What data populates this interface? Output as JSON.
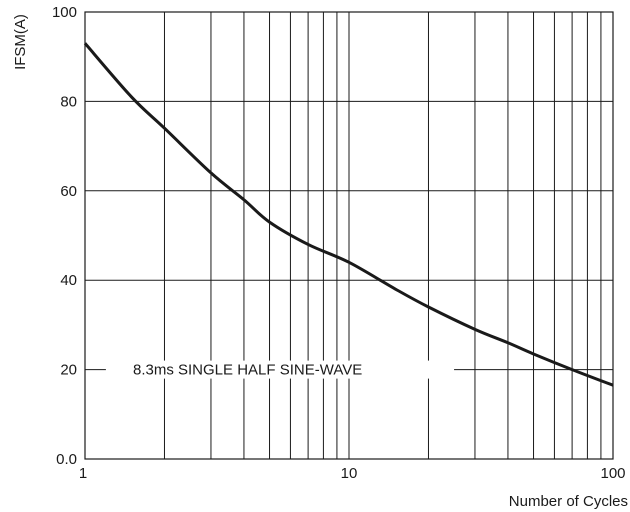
{
  "chart_data": {
    "type": "line",
    "title": "",
    "xlabel": "Number of Cycles",
    "ylabel": "IFSM(A)",
    "xscale": "log",
    "xlim": [
      1,
      100
    ],
    "ylim": [
      0,
      100
    ],
    "grid": true,
    "x_ticks": [
      "1",
      "10",
      "100"
    ],
    "y_ticks": [
      "0.0",
      "20",
      "40",
      "60",
      "80",
      "100"
    ],
    "annotation": "8.3ms SINGLE HALF SINE-WAVE",
    "series": [
      {
        "name": "",
        "x": [
          1,
          1.5,
          2,
          3,
          4,
          5,
          7,
          10,
          15,
          20,
          30,
          40,
          50,
          70,
          100
        ],
        "y": [
          93,
          81,
          74,
          64,
          58,
          53,
          48,
          44,
          38,
          34,
          29,
          26,
          23.5,
          20,
          16.5
        ]
      }
    ],
    "colors": {
      "line": "#1a1a1a",
      "grid": "#1a1a1a"
    }
  }
}
